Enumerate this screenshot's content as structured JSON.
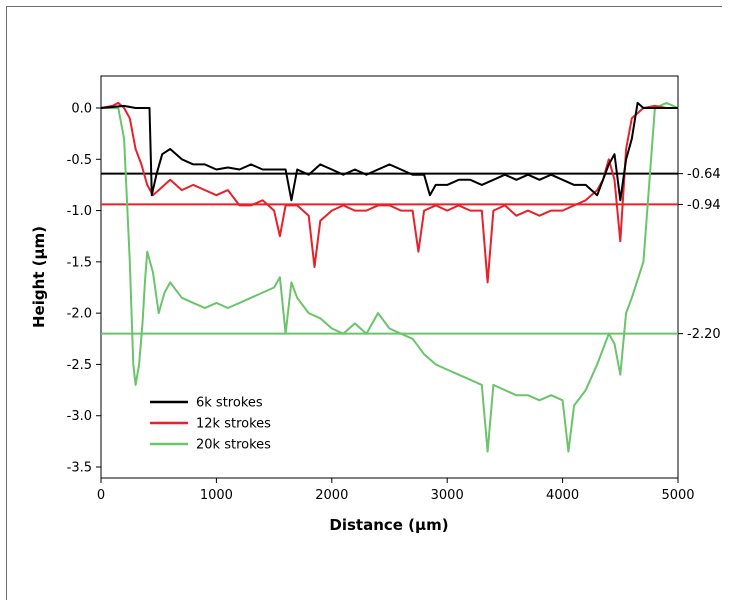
{
  "chart_data": {
    "type": "line",
    "xlabel": "Distance (µm)",
    "ylabel": "Height (µm)",
    "xlim": [
      0,
      5000
    ],
    "ylim": [
      -3.6,
      0.25
    ],
    "xticks": [
      0,
      1000,
      2000,
      3000,
      4000,
      5000
    ],
    "xtick_labels": [
      "0",
      "1000",
      "2000",
      "3000",
      "4000",
      "5000"
    ],
    "yticks": [
      0.0,
      -0.5,
      -1.0,
      -1.5,
      -2.0,
      -2.5,
      -3.0,
      -3.5
    ],
    "ytick_labels": [
      "0.0",
      "-0.5",
      "-1.0",
      "-1.5",
      "-2.0",
      "-2.5",
      "-3.0",
      "-3.5"
    ],
    "grid": false,
    "legend_position": "bottom-left",
    "series": [
      {
        "name": "6k strokes",
        "color": "#000000",
        "x": [
          0,
          200,
          300,
          420,
          440,
          480,
          530,
          600,
          700,
          800,
          900,
          1000,
          1100,
          1200,
          1300,
          1400,
          1500,
          1600,
          1650,
          1700,
          1800,
          1900,
          2000,
          2100,
          2200,
          2300,
          2400,
          2500,
          2600,
          2700,
          2800,
          2850,
          2900,
          3000,
          3100,
          3200,
          3300,
          3400,
          3500,
          3600,
          3700,
          3800,
          3900,
          4000,
          4100,
          4200,
          4250,
          4300,
          4350,
          4400,
          4450,
          4500,
          4550,
          4600,
          4650,
          4700,
          4800,
          4900,
          5000
        ],
        "y": [
          0.0,
          0.02,
          0.0,
          0.0,
          -0.85,
          -0.65,
          -0.45,
          -0.4,
          -0.5,
          -0.55,
          -0.55,
          -0.6,
          -0.58,
          -0.6,
          -0.55,
          -0.6,
          -0.6,
          -0.6,
          -0.9,
          -0.6,
          -0.65,
          -0.55,
          -0.6,
          -0.65,
          -0.6,
          -0.65,
          -0.6,
          -0.55,
          -0.6,
          -0.65,
          -0.65,
          -0.85,
          -0.75,
          -0.75,
          -0.7,
          -0.7,
          -0.75,
          -0.7,
          -0.65,
          -0.7,
          -0.65,
          -0.7,
          -0.65,
          -0.7,
          -0.75,
          -0.75,
          -0.8,
          -0.85,
          -0.7,
          -0.55,
          -0.45,
          -0.9,
          -0.5,
          -0.3,
          0.05,
          0.0,
          0.0,
          0.0,
          0.0
        ]
      },
      {
        "name": "12k strokes",
        "color": "#e8202a",
        "x": [
          0,
          100,
          150,
          200,
          250,
          300,
          350,
          400,
          450,
          500,
          600,
          700,
          800,
          900,
          1000,
          1100,
          1200,
          1300,
          1400,
          1500,
          1550,
          1600,
          1700,
          1800,
          1850,
          1900,
          2000,
          2100,
          2200,
          2300,
          2400,
          2500,
          2600,
          2700,
          2750,
          2800,
          2900,
          3000,
          3100,
          3200,
          3300,
          3350,
          3400,
          3500,
          3600,
          3700,
          3800,
          3900,
          4000,
          4100,
          4200,
          4300,
          4350,
          4400,
          4450,
          4500,
          4550,
          4600,
          4700,
          4800,
          4900,
          5000
        ],
        "y": [
          0.0,
          0.02,
          0.05,
          0.0,
          -0.1,
          -0.4,
          -0.55,
          -0.75,
          -0.85,
          -0.8,
          -0.7,
          -0.8,
          -0.75,
          -0.8,
          -0.85,
          -0.8,
          -0.95,
          -0.95,
          -0.9,
          -1.0,
          -1.25,
          -0.95,
          -0.95,
          -1.05,
          -1.55,
          -1.1,
          -1.0,
          -0.95,
          -1.0,
          -1.0,
          -0.95,
          -0.95,
          -1.0,
          -1.0,
          -1.4,
          -1.0,
          -0.95,
          -1.0,
          -0.95,
          -1.0,
          -1.0,
          -1.7,
          -1.0,
          -0.95,
          -1.05,
          -1.0,
          -1.05,
          -1.0,
          -1.0,
          -0.95,
          -0.9,
          -0.8,
          -0.7,
          -0.5,
          -0.7,
          -1.3,
          -0.4,
          -0.1,
          0.0,
          0.02,
          0.0,
          0.0
        ]
      },
      {
        "name": "20k strokes",
        "color": "#6ac46a",
        "x": [
          0,
          150,
          200,
          250,
          280,
          300,
          330,
          360,
          380,
          400,
          450,
          500,
          550,
          600,
          700,
          800,
          900,
          1000,
          1100,
          1200,
          1300,
          1400,
          1500,
          1550,
          1600,
          1650,
          1700,
          1800,
          1900,
          2000,
          2100,
          2200,
          2300,
          2400,
          2500,
          2600,
          2700,
          2800,
          2900,
          3000,
          3100,
          3200,
          3300,
          3350,
          3400,
          3500,
          3600,
          3700,
          3800,
          3900,
          4000,
          4050,
          4100,
          4200,
          4300,
          4400,
          4450,
          4500,
          4550,
          4600,
          4700,
          4800,
          4900,
          5000
        ],
        "y": [
          0.0,
          0.0,
          -0.3,
          -1.5,
          -2.5,
          -2.7,
          -2.5,
          -2.1,
          -1.7,
          -1.4,
          -1.6,
          -2.0,
          -1.8,
          -1.7,
          -1.85,
          -1.9,
          -1.95,
          -1.9,
          -1.95,
          -1.9,
          -1.85,
          -1.8,
          -1.75,
          -1.65,
          -2.2,
          -1.7,
          -1.85,
          -2.0,
          -2.05,
          -2.15,
          -2.2,
          -2.1,
          -2.2,
          -2.0,
          -2.15,
          -2.2,
          -2.25,
          -2.4,
          -2.5,
          -2.55,
          -2.6,
          -2.65,
          -2.7,
          -3.35,
          -2.7,
          -2.75,
          -2.8,
          -2.8,
          -2.85,
          -2.8,
          -2.85,
          -3.35,
          -2.9,
          -2.75,
          -2.5,
          -2.2,
          -2.3,
          -2.6,
          -2.0,
          -1.85,
          -1.5,
          0.0,
          0.05,
          0.0
        ]
      }
    ],
    "reference_lines": [
      {
        "y": -0.64,
        "label": "-0.64",
        "color": "#000000"
      },
      {
        "y": -0.94,
        "label": "-0.94",
        "color": "#e8202a"
      },
      {
        "y": -2.2,
        "label": "-2.20",
        "color": "#6ac46a"
      }
    ]
  }
}
